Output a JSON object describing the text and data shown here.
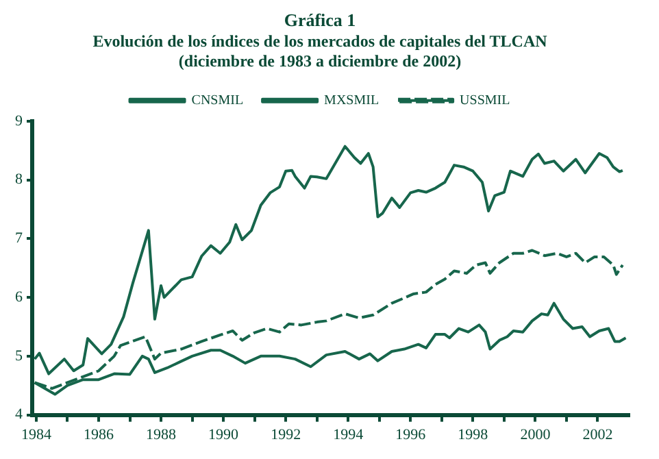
{
  "chart_data": {
    "type": "line",
    "title": "Gráfica 1",
    "subtitle": "Evolución de los índices de los mercados de capitales del TLCAN\n(diciembre de 1983 a diciembre de 2002)",
    "xlim": [
      1983.87,
      2003
    ],
    "xticks": [
      {
        "value": 1984,
        "label": "1984"
      },
      {
        "value": 1985,
        "label": null
      },
      {
        "value": 1986,
        "label": "1986"
      },
      {
        "value": 1987,
        "label": null
      },
      {
        "value": 1988,
        "label": "1988"
      },
      {
        "value": 1989,
        "label": null
      },
      {
        "value": 1990,
        "label": "1990"
      },
      {
        "value": 1991,
        "label": null
      },
      {
        "value": 1992,
        "label": "1992"
      },
      {
        "value": 1993,
        "label": null
      },
      {
        "value": 1994,
        "label": "1994"
      },
      {
        "value": 1995,
        "label": null
      },
      {
        "value": 1996,
        "label": "1996"
      },
      {
        "value": 1997,
        "label": null
      },
      {
        "value": 1998,
        "label": "1998"
      },
      {
        "value": 1999,
        "label": null
      },
      {
        "value": 2000,
        "label": "2000"
      },
      {
        "value": 2001,
        "label": null
      },
      {
        "value": 2002,
        "label": "2002"
      }
    ],
    "ylim": [
      4,
      9
    ],
    "yticks": [
      4,
      5,
      6,
      7,
      8,
      9
    ],
    "grid": false,
    "legend": "top",
    "marker": "none",
    "series": [
      {
        "name": "CNSMIL",
        "color": "#17664c",
        "line_style": "solid",
        "x": [
          1983.95,
          1984.6,
          1985.0,
          1985.5,
          1986.0,
          1986.5,
          1987.0,
          1987.4,
          1987.6,
          1987.8,
          1988.2,
          1988.6,
          1989.0,
          1989.6,
          1989.9,
          1990.3,
          1990.7,
          1991.2,
          1991.8,
          1992.3,
          1992.8,
          1993.3,
          1993.9,
          1994.35,
          1994.7,
          1994.95,
          1995.4,
          1995.8,
          1996.25,
          1996.5,
          1996.8,
          1997.1,
          1997.25,
          1997.55,
          1997.85,
          1998.2,
          1998.4,
          1998.55,
          1998.85,
          1999.1,
          1999.3,
          1999.6,
          1999.9,
          2000.2,
          2000.4,
          2000.6,
          2000.9,
          2001.2,
          2001.5,
          2001.75,
          2002.05,
          2002.35,
          2002.55,
          2002.7,
          2002.9
        ],
        "values": [
          4.55,
          4.35,
          4.5,
          4.6,
          4.6,
          4.7,
          4.69,
          5.0,
          4.95,
          4.72,
          4.8,
          4.9,
          5.0,
          5.1,
          5.1,
          5.0,
          4.88,
          5.0,
          5.0,
          4.95,
          4.82,
          5.02,
          5.08,
          4.95,
          5.04,
          4.92,
          5.08,
          5.12,
          5.2,
          5.14,
          5.37,
          5.37,
          5.31,
          5.47,
          5.41,
          5.53,
          5.41,
          5.12,
          5.27,
          5.33,
          5.43,
          5.41,
          5.6,
          5.72,
          5.7,
          5.9,
          5.63,
          5.47,
          5.5,
          5.33,
          5.43,
          5.47,
          5.25,
          5.25,
          5.31
        ]
      },
      {
        "name": "MXSMIL",
        "color": "#17664c",
        "line_style": "solid",
        "x": [
          1983.95,
          1984.1,
          1984.4,
          1984.9,
          1985.2,
          1985.5,
          1985.65,
          1986.1,
          1986.4,
          1986.8,
          1987.1,
          1987.6,
          1987.8,
          1988.0,
          1988.1,
          1988.65,
          1989.0,
          1989.3,
          1989.6,
          1989.9,
          1990.2,
          1990.4,
          1990.6,
          1990.9,
          1991.2,
          1991.5,
          1991.8,
          1992.0,
          1992.2,
          1992.3,
          1992.6,
          1992.8,
          1993.0,
          1993.3,
          1993.9,
          1994.2,
          1994.4,
          1994.65,
          1994.8,
          1994.95,
          1995.1,
          1995.4,
          1995.65,
          1996.0,
          1996.25,
          1996.5,
          1996.8,
          1997.1,
          1997.4,
          1997.7,
          1998.0,
          1998.3,
          1998.5,
          1998.7,
          1999.0,
          1999.2,
          1999.6,
          1999.9,
          2000.1,
          2000.3,
          2000.6,
          2000.9,
          2001.3,
          2001.6,
          2002.05,
          2002.3,
          2002.5,
          2002.7,
          2002.8
        ],
        "values": [
          4.95,
          5.05,
          4.7,
          4.95,
          4.75,
          4.85,
          5.3,
          5.04,
          5.2,
          5.67,
          6.25,
          7.14,
          5.63,
          6.2,
          6.0,
          6.3,
          6.35,
          6.7,
          6.88,
          6.75,
          6.94,
          7.24,
          6.98,
          7.14,
          7.57,
          7.78,
          7.88,
          8.15,
          8.16,
          8.06,
          7.86,
          8.06,
          8.05,
          8.02,
          8.57,
          8.38,
          8.28,
          8.45,
          8.22,
          7.37,
          7.43,
          7.69,
          7.53,
          7.78,
          7.82,
          7.79,
          7.86,
          7.96,
          8.25,
          8.22,
          8.15,
          7.96,
          7.47,
          7.73,
          7.79,
          8.15,
          8.06,
          8.35,
          8.44,
          8.28,
          8.32,
          8.15,
          8.35,
          8.12,
          8.45,
          8.38,
          8.22,
          8.14,
          8.16
        ]
      },
      {
        "name": "USSMIL",
        "color": "#17664c",
        "line_style": "dashed",
        "x": [
          1983.95,
          1984.5,
          1985.0,
          1985.5,
          1986.0,
          1986.5,
          1986.7,
          1987.5,
          1987.8,
          1988.0,
          1988.65,
          1989.3,
          1989.9,
          1990.3,
          1990.6,
          1991.0,
          1991.4,
          1991.8,
          1992.1,
          1992.5,
          1993.0,
          1993.3,
          1993.9,
          1994.35,
          1994.8,
          1995.4,
          1995.8,
          1996.1,
          1996.5,
          1996.8,
          1997.1,
          1997.4,
          1997.8,
          1998.1,
          1998.4,
          1998.55,
          1998.85,
          1999.3,
          1999.6,
          1999.9,
          2000.3,
          2000.7,
          2001.0,
          2001.3,
          2001.6,
          2001.9,
          2002.2,
          2002.5,
          2002.6,
          2002.8
        ],
        "values": [
          4.55,
          4.45,
          4.55,
          4.65,
          4.75,
          5.0,
          5.18,
          5.33,
          4.95,
          5.05,
          5.12,
          5.25,
          5.36,
          5.43,
          5.27,
          5.4,
          5.47,
          5.41,
          5.55,
          5.53,
          5.58,
          5.6,
          5.72,
          5.65,
          5.7,
          5.9,
          5.99,
          6.06,
          6.09,
          6.22,
          6.31,
          6.45,
          6.41,
          6.55,
          6.59,
          6.41,
          6.59,
          6.75,
          6.75,
          6.8,
          6.71,
          6.75,
          6.69,
          6.75,
          6.59,
          6.69,
          6.69,
          6.55,
          6.39,
          6.55
        ]
      }
    ]
  }
}
